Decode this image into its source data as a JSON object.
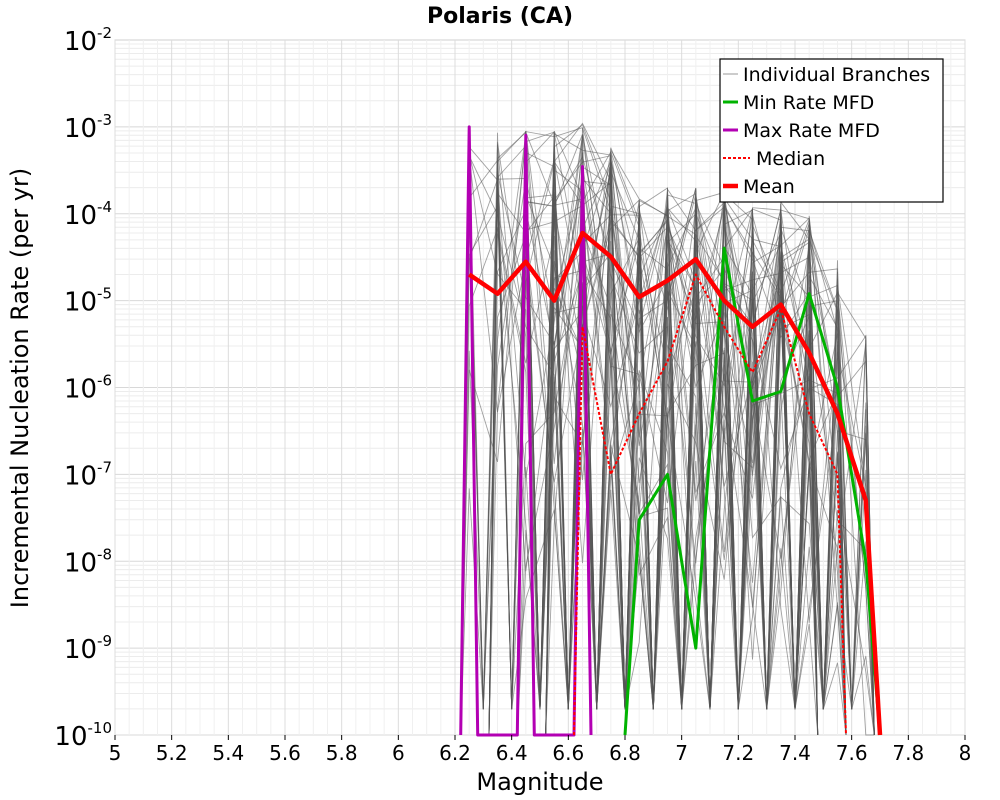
{
  "chart_data": {
    "type": "line",
    "title": "Polaris (CA)",
    "xlabel": "Magnitude",
    "ylabel": "Incremental Nucleation Rate (per yr)",
    "xlim": [
      5,
      8
    ],
    "ylim": [
      1e-10,
      0.01
    ],
    "yscale": "log",
    "grid": true,
    "legend_position": "top-right",
    "x_ticks": [
      "5",
      "5.2",
      "5.4",
      "5.6",
      "5.8",
      "6",
      "6.2",
      "6.4",
      "6.6",
      "6.8",
      "7",
      "7.2",
      "7.4",
      "7.6",
      "7.8",
      "8"
    ],
    "y_ticks": [
      {
        "base": "10",
        "exp": "-2",
        "value": 0.01
      },
      {
        "base": "10",
        "exp": "-3",
        "value": 0.001
      },
      {
        "base": "10",
        "exp": "-4",
        "value": 0.0001
      },
      {
        "base": "10",
        "exp": "-5",
        "value": 1e-05
      },
      {
        "base": "10",
        "exp": "-6",
        "value": 1e-06
      },
      {
        "base": "10",
        "exp": "-7",
        "value": 1e-07
      },
      {
        "base": "10",
        "exp": "-8",
        "value": 1e-08
      },
      {
        "base": "10",
        "exp": "-9",
        "value": 1e-09
      },
      {
        "base": "10",
        "exp": "-10",
        "value": 1e-10
      }
    ],
    "series": [
      {
        "name": "Individual Branches",
        "color": "#555555",
        "style": "thin",
        "x": [
          6.25,
          6.35,
          6.45,
          6.55,
          6.65,
          6.75,
          6.85,
          6.95,
          7.05,
          7.15,
          7.25,
          7.35,
          7.45,
          7.55,
          7.65
        ],
        "y_max": [
          0.001,
          0.0009,
          0.0009,
          0.001,
          0.0011,
          0.0006,
          0.00015,
          0.0002,
          0.0002,
          0.00018,
          0.00012,
          0.00014,
          0.0001,
          3e-05,
          4e-06
        ],
        "description_count": 60
      },
      {
        "name": "Min Rate MFD",
        "color": "#00b300",
        "style": "solid",
        "x": [
          6.8,
          6.85,
          6.95,
          7.05,
          7.15,
          7.25,
          7.35,
          7.45,
          7.55,
          7.65,
          7.7
        ],
        "y": [
          1e-10,
          3e-08,
          1e-07,
          1e-09,
          4e-05,
          7e-07,
          9e-07,
          1.2e-05,
          1e-06,
          1e-08,
          1e-10
        ]
      },
      {
        "name": "Max Rate MFD",
        "color": "#b300b3",
        "style": "solid",
        "x": [
          6.22,
          6.25,
          6.28,
          6.42,
          6.45,
          6.48,
          6.62,
          6.65,
          6.68
        ],
        "y": [
          1e-10,
          0.001,
          1e-10,
          1e-10,
          0.0008,
          1e-10,
          1e-10,
          0.00035,
          1e-10
        ]
      },
      {
        "name": "Median",
        "color": "#ff0000",
        "style": "dotted",
        "x": [
          6.62,
          6.65,
          6.75,
          6.85,
          6.95,
          7.05,
          7.15,
          7.25,
          7.35,
          7.45,
          7.55,
          7.58
        ],
        "y": [
          1e-10,
          5e-06,
          1e-07,
          5e-07,
          2e-06,
          2e-05,
          5e-06,
          1.5e-06,
          8e-06,
          5e-07,
          1e-07,
          1e-10
        ]
      },
      {
        "name": "Mean",
        "color": "#ff0000",
        "style": "thick",
        "x": [
          6.25,
          6.35,
          6.45,
          6.55,
          6.65,
          6.75,
          6.85,
          6.95,
          7.05,
          7.15,
          7.25,
          7.35,
          7.45,
          7.55,
          7.65,
          7.7
        ],
        "y": [
          2e-05,
          1.2e-05,
          2.8e-05,
          1e-05,
          6e-05,
          3.2e-05,
          1.1e-05,
          1.7e-05,
          3e-05,
          1e-05,
          5e-06,
          9e-06,
          2.5e-06,
          5e-07,
          5e-08,
          1e-10
        ]
      }
    ]
  }
}
